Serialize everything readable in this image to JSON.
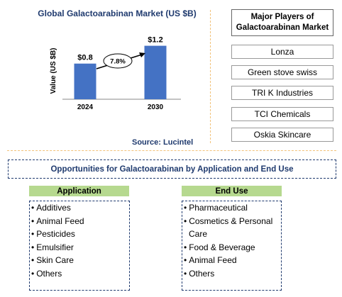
{
  "chart_data": {
    "type": "bar",
    "title": "Global Galactoarabinan Market (US $B)",
    "ylabel": "Value (US $B)",
    "categories": [
      "2024",
      "2030"
    ],
    "values": [
      0.8,
      1.2
    ],
    "value_labels": [
      "$0.8",
      "$1.2"
    ],
    "growth_label": "7.8%",
    "ylim": [
      0,
      1.4
    ],
    "bar_color": "#4472c4",
    "source": "Source: Lucintel"
  },
  "players": {
    "title": "Major Players of Galactoarabinan Market",
    "items": [
      "Lonza",
      "Green stove swiss",
      "TRI K Industries",
      "TCI Chemicals",
      "Oskia Skincare"
    ]
  },
  "opportunities": {
    "title": "Opportunities for Galactoarabinan by Application and End Use",
    "application": {
      "header": "Application",
      "items": [
        "Additives",
        "Animal Feed",
        "Pesticides",
        "Emulsifier",
        "Skin Care",
        "Others"
      ]
    },
    "end_use": {
      "header": "End Use",
      "items": [
        "Pharmaceutical",
        "Cosmetics & Personal Care",
        "Food & Beverage",
        "Animal Feed",
        "Others"
      ]
    }
  },
  "colors": {
    "title_blue": "#1f3a6e",
    "header_green": "#b6d98f",
    "separator": "#f2c27a"
  }
}
